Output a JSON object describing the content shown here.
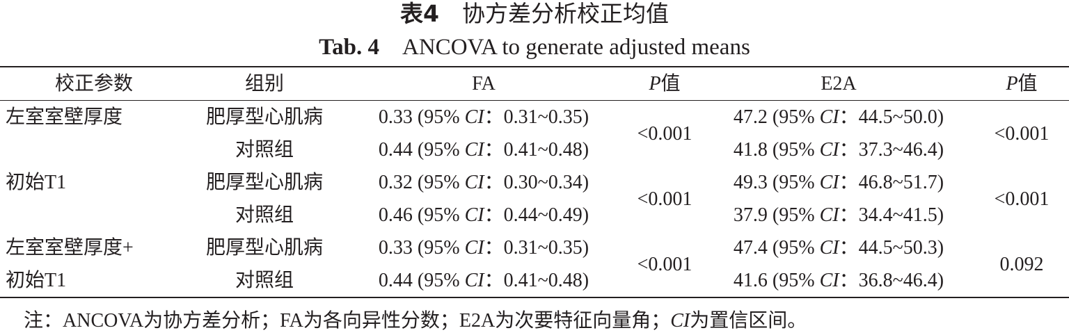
{
  "header": {
    "title": [
      {
        "text": "表4",
        "bold": true
      },
      {
        "text": "　协方差分析校正均值"
      }
    ],
    "subtitle": [
      {
        "text": "Tab. 4",
        "bold": true
      },
      {
        "text": "　ANCOVA to generate adjusted means"
      }
    ]
  },
  "table": {
    "columns": [
      "校正参数",
      "组别",
      "FA",
      [
        {
          "text": "P",
          "italic": true
        },
        {
          "text": "值"
        }
      ],
      "E2A",
      [
        {
          "text": "P",
          "italic": true
        },
        {
          "text": "值"
        }
      ]
    ],
    "groups": [
      {
        "param": [
          "左室室壁厚度"
        ],
        "rows": [
          {
            "group": "肥厚型心肌病",
            "fa": [
              {
                "text": "0.33 (95% "
              },
              {
                "text": "CI",
                "italic": true
              },
              {
                "text": "：0.31~0.35)"
              }
            ],
            "e2a": [
              {
                "text": "47.2 (95% "
              },
              {
                "text": "CI",
                "italic": true
              },
              {
                "text": "：44.5~50.0)"
              }
            ]
          },
          {
            "group": "对照组",
            "fa": [
              {
                "text": "0.44 (95% "
              },
              {
                "text": "CI",
                "italic": true
              },
              {
                "text": "：0.41~0.48)"
              }
            ],
            "e2a": [
              {
                "text": "41.8 (95% "
              },
              {
                "text": "CI",
                "italic": true
              },
              {
                "text": "：37.3~46.4)"
              }
            ]
          }
        ],
        "fa_p": "<0.001",
        "e2a_p": "<0.001"
      },
      {
        "param": [
          "初始T1"
        ],
        "rows": [
          {
            "group": "肥厚型心肌病",
            "fa": [
              {
                "text": "0.32 (95% "
              },
              {
                "text": "CI",
                "italic": true
              },
              {
                "text": "：0.30~0.34)"
              }
            ],
            "e2a": [
              {
                "text": "49.3 (95% "
              },
              {
                "text": "CI",
                "italic": true
              },
              {
                "text": "：46.8~51.7)"
              }
            ]
          },
          {
            "group": "对照组",
            "fa": [
              {
                "text": "0.46 (95% "
              },
              {
                "text": "CI",
                "italic": true
              },
              {
                "text": "：0.44~0.49)"
              }
            ],
            "e2a": [
              {
                "text": "37.9 (95% "
              },
              {
                "text": "CI",
                "italic": true
              },
              {
                "text": "：34.4~41.5)"
              }
            ]
          }
        ],
        "fa_p": "<0.001",
        "e2a_p": "<0.001"
      },
      {
        "param": [
          "左室室壁厚度+",
          "初始T1"
        ],
        "rows": [
          {
            "group": "肥厚型心肌病",
            "fa": [
              {
                "text": "0.33 (95% "
              },
              {
                "text": "CI",
                "italic": true
              },
              {
                "text": "：0.31~0.35)"
              }
            ],
            "e2a": [
              {
                "text": "47.4 (95% "
              },
              {
                "text": "CI",
                "italic": true
              },
              {
                "text": "：44.5~50.3)"
              }
            ]
          },
          {
            "group": "对照组",
            "fa": [
              {
                "text": "0.44 (95% "
              },
              {
                "text": "CI",
                "italic": true
              },
              {
                "text": "：0.41~0.48)"
              }
            ],
            "e2a": [
              {
                "text": "41.6 (95% "
              },
              {
                "text": "CI",
                "italic": true
              },
              {
                "text": "：36.8~46.4)"
              }
            ]
          }
        ],
        "fa_p": "<0.001",
        "e2a_p": "0.092"
      }
    ]
  },
  "note": [
    {
      "text": "注：ANCOVA为协方差分析；FA为各向异性分数；E2A为次要特征向量角；"
    },
    {
      "text": "CI",
      "italic": true
    },
    {
      "text": "为置信区间。"
    }
  ]
}
